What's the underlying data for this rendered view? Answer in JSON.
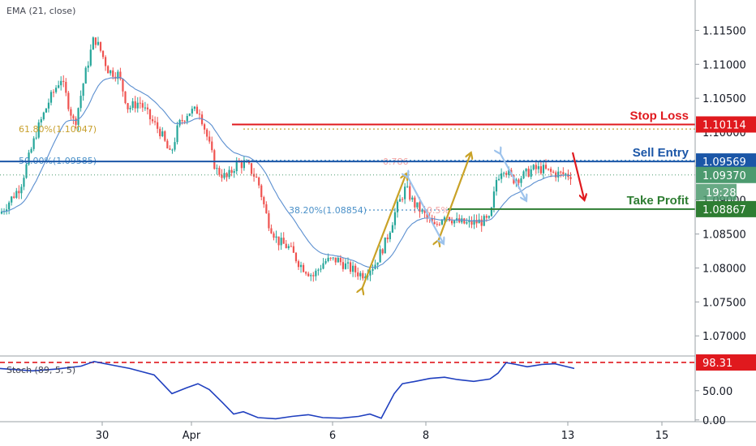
{
  "chart_data": {
    "type": "candlestick",
    "indicator_label": "EMA (21, close)",
    "stoch_label": "Stoch (89, 5, 5)",
    "y_ticks": [
      "1.11500",
      "1.11000",
      "1.10500",
      "1.10000",
      "1.09500",
      "1.09000",
      "1.08500",
      "1.08000",
      "1.07500",
      "1.07000"
    ],
    "y_tick_values": [
      1.115,
      1.11,
      1.105,
      1.1,
      1.095,
      1.09,
      1.085,
      1.08,
      1.075,
      1.07
    ],
    "ylim": [
      1.0662,
      1.1178
    ],
    "x_ticks": [
      "30",
      "Apr",
      "6",
      "8",
      "13",
      "15"
    ],
    "x_tick_positions": [
      126,
      236,
      410,
      525,
      700,
      816
    ],
    "stoch_ticks": [
      "50.00",
      "0.00"
    ],
    "stoch_tick_values": [
      50,
      0
    ],
    "stoch_ylim": [
      -3,
      108
    ],
    "levels": [
      {
        "name": "stop-loss",
        "label": "Stop Loss",
        "value": 1.10114,
        "badge": "1.10114",
        "color": "#e0191e"
      },
      {
        "name": "sell-entry",
        "label": "Sell Entry",
        "value": 1.09569,
        "badge": "1.09569",
        "color": "#1b56a7"
      },
      {
        "name": "take-profit",
        "label": "Take Profit",
        "value": 1.08867,
        "badge": "1.08867",
        "color": "#2e7d32"
      }
    ],
    "current_price": {
      "value": 1.0937,
      "badge": "1.09370",
      "countdown": "19:28",
      "color": "#4c9a6f"
    },
    "stoch_current": {
      "value": 98.31,
      "badge": "98.31",
      "color": "#e0191e"
    },
    "fib_levels": [
      {
        "label": "61.80%(1.10047)",
        "value": 1.10047,
        "color": "#c8a02c"
      },
      {
        "label": "50.00%(1.09585)",
        "value": 1.09585,
        "color": "#4a90c8"
      },
      {
        "label": "38.20%(1.08854)",
        "value": 1.08854,
        "color": "#4a90c8"
      }
    ],
    "fib_faint_labels": [
      "0.786",
      "0.5%"
    ],
    "colors": {
      "up": "#26a69a",
      "down": "#ef5350",
      "ema": "#5b8fd0",
      "stoch": "#1f3fbf",
      "arrow_gold": "#c9a227",
      "arrow_blue": "#9dc3ec",
      "arrow_red": "#e0191e"
    }
  }
}
